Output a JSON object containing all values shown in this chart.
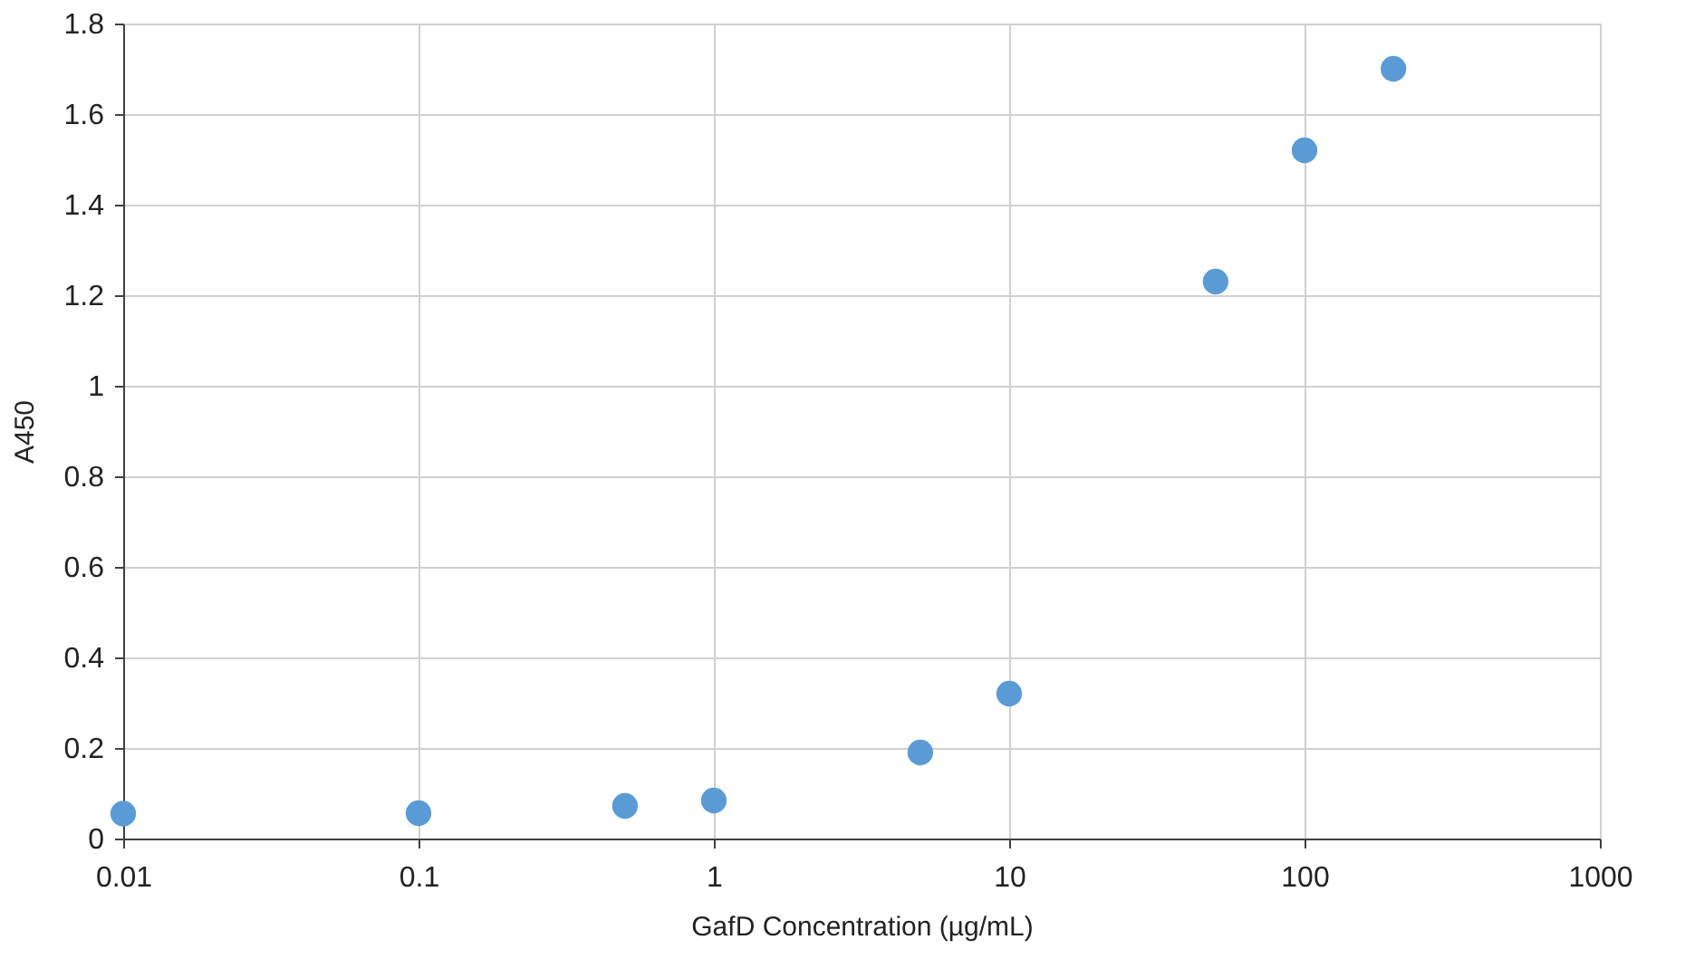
{
  "chart_data": {
    "type": "scatter",
    "xlabel": "GafD Concentration (µg/mL)",
    "ylabel": "A450",
    "x": [
      0.01,
      0.1,
      0.5,
      1,
      5,
      10,
      50,
      100,
      200
    ],
    "series": [
      {
        "color": "#5b9bd5",
        "values": [
          0.055,
          0.056,
          0.072,
          0.084,
          0.19,
          0.32,
          1.23,
          1.52,
          1.7
        ]
      }
    ],
    "log": "x",
    "xlim": [
      0.01,
      1000
    ],
    "xticks": [
      0.01,
      0.1,
      1,
      10,
      100,
      1000
    ],
    "ylim": [
      0,
      1.8
    ],
    "yticks": [
      0,
      0.2,
      0.4,
      0.6,
      0.8,
      1,
      1.2,
      1.4,
      1.6,
      1.8
    ],
    "grid": true,
    "legend": false,
    "marker": "circle"
  }
}
